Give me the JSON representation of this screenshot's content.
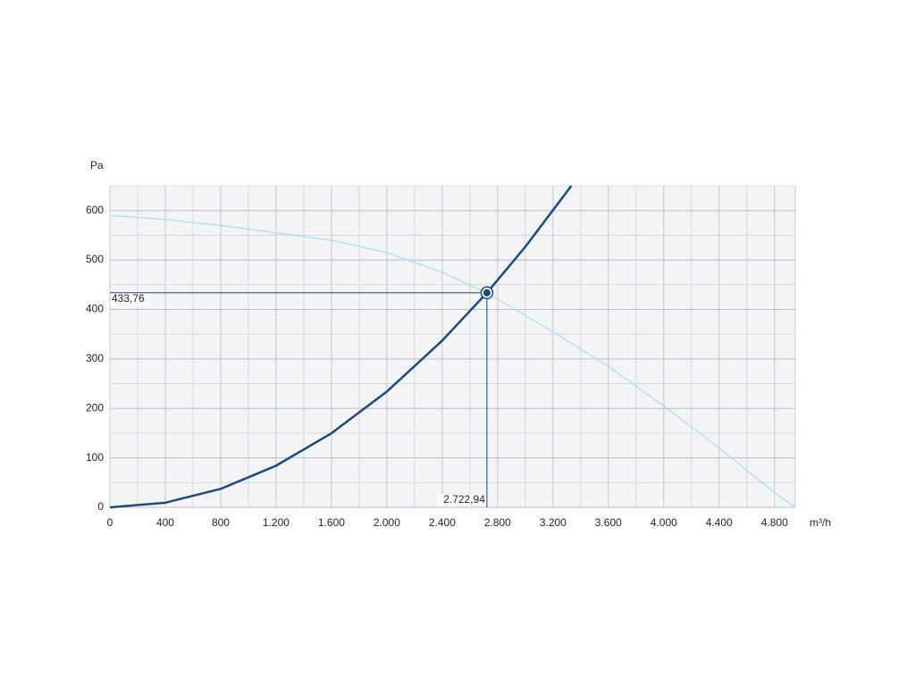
{
  "chart_data": {
    "type": "line",
    "y_label": "Pa",
    "x_label": "m³/h",
    "xlim": [
      0,
      4950
    ],
    "ylim": [
      0,
      650
    ],
    "xticks": [
      0,
      400,
      800,
      {
        "value": 1200,
        "label": "1.200"
      },
      {
        "value": 1600,
        "label": "1.600"
      },
      {
        "value": 2000,
        "label": "2.000"
      },
      {
        "value": 2400,
        "label": "2.400"
      },
      {
        "value": 2800,
        "label": "2.800"
      },
      {
        "value": 3200,
        "label": "3.200"
      },
      {
        "value": 3600,
        "label": "3.600"
      },
      {
        "value": 4000,
        "label": "4.000"
      },
      {
        "value": 4400,
        "label": "4.400"
      },
      {
        "value": 4800,
        "label": "4.800"
      }
    ],
    "yticks": [
      0,
      100,
      200,
      300,
      400,
      500,
      600
    ],
    "minor_xticks": [
      200,
      600,
      1000,
      1400,
      1800,
      2200,
      2600,
      3000,
      3400,
      3800,
      4200,
      4600
    ],
    "minor_yticks": [
      50,
      150,
      250,
      350,
      450,
      550,
      650
    ],
    "grid": true,
    "series": [
      {
        "color": "#a8dcea",
        "x": [
          0,
          400,
          800,
          1200,
          1600,
          2000,
          2400,
          2722.94,
          3200,
          3600,
          4000,
          4400,
          4800,
          4950
        ],
        "values": [
          590,
          582,
          570,
          555,
          540,
          515,
          475,
          433.76,
          355,
          285,
          205,
          120,
          30,
          0
        ]
      },
      {
        "color": "#1b4a7a",
        "x": [
          0,
          400,
          800,
          1200,
          1600,
          2000,
          2400,
          2722.94,
          3000,
          3333
        ],
        "values": [
          0,
          9.36,
          37.4,
          84.2,
          149.8,
          234,
          337,
          433.76,
          526.5,
          650
        ]
      }
    ],
    "operating_point": {
      "x": 2722.94,
      "y": 433.76,
      "x_label": "2.722,94",
      "y_label": "433,76",
      "color": "#1b4a7a"
    }
  }
}
